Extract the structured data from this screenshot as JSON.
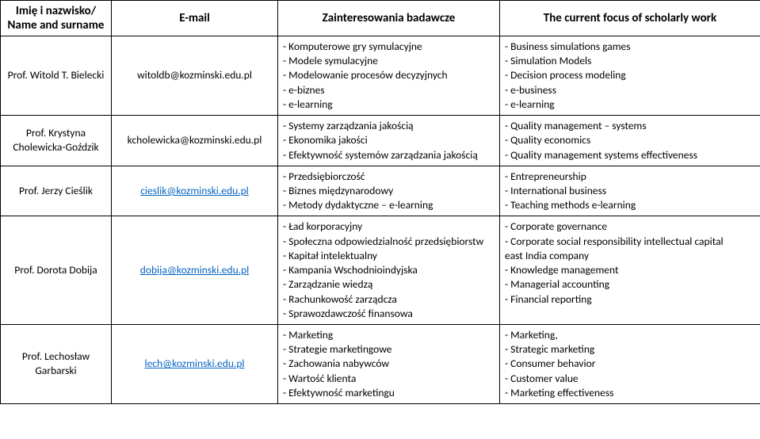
{
  "headers": {
    "name": "Imię i nazwisko/\nName and surname",
    "email": "E-mail",
    "interests": "Zainteresowania badawcze",
    "focus": "The current focus of scholarly work"
  },
  "rows": [
    {
      "name": "Prof. Witold T. Bielecki",
      "email": "witoldb@kozminski.edu.pl",
      "email_link": false,
      "interests": [
        "- Komputerowe gry symulacyjne",
        "- Modele symulacyjne",
        "- Modelowanie procesów decyzyjnych",
        "- e-biznes",
        "- e-learning"
      ],
      "focus": [
        "- Business simulations games",
        "- Simulation Models",
        "- Decision process modeling",
        "- e-business",
        "- e-learning"
      ]
    },
    {
      "name": "Prof. Krystyna Cholewicka-Goździk",
      "email": "kcholewicka@kozminski.edu.pl",
      "email_link": false,
      "interests": [
        "- Systemy zarządzania jakością",
        "- Ekonomika jakości",
        "- Efektywność systemów zarządzania jakością"
      ],
      "focus": [
        "- Quality management – systems",
        "- Quality economics",
        "- Quality management systems effectiveness"
      ]
    },
    {
      "name": "Prof. Jerzy Cieślik",
      "email": "cieslik@kozminski.edu.pl",
      "email_link": true,
      "interests": [
        "- Przedsiębiorczość",
        "- Biznes międzynarodowy",
        "- Metody dydaktyczne – e-learning"
      ],
      "focus": [
        "- Entrepreneurship",
        "- International business",
        "- Teaching methods e-learning"
      ]
    },
    {
      "name": "Prof. Dorota Dobija",
      "email": "dobija@kozminski.edu.pl",
      "email_link": true,
      "interests": [
        "- Ład korporacyjny",
        "- Społeczna odpowiedzialność przedsiębiorstw",
        "- Kapitał intelektualny",
        "- Kampania Wschodnioindyjska",
        "- Zarządzanie wiedzą",
        "- Rachunkowość zarządcza",
        "- Sprawozdawczość finansowa"
      ],
      "focus": [
        "- Corporate governance",
        "- Corporate social responsibility intellectual capital",
        "east India company",
        "- Knowledge management",
        "- Managerial accounting",
        "- Financial reporting"
      ]
    },
    {
      "name": "Prof. Lechosław Garbarski",
      "email": "lech@kozminski.edu.pl",
      "email_link": true,
      "interests": [
        "- Marketing",
        "- Strategie marketingowe",
        "- Zachowania nabywców",
        "- Wartość klienta",
        "- Efektywność marketingu"
      ],
      "focus": [
        "- Marketing,",
        "- Strategic marketing",
        "- Consumer behavior",
        "- Customer value",
        "- Marketing effectiveness"
      ]
    }
  ]
}
